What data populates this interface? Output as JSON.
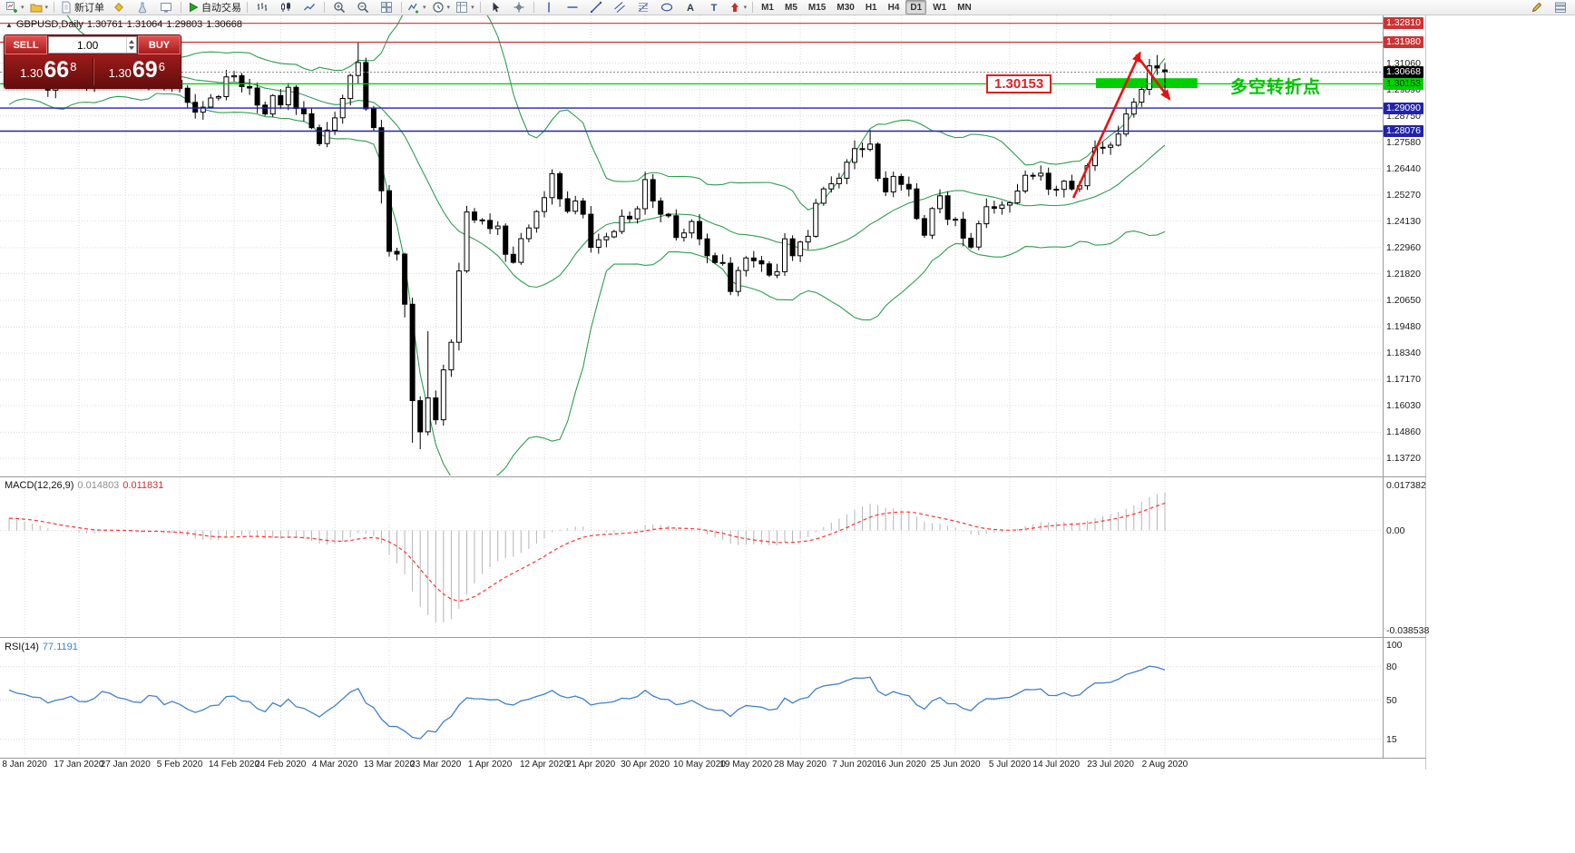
{
  "toolbar": {
    "items": [
      {
        "type": "icon",
        "name": "new-chart-icon",
        "glyph": "chart-plus",
        "dropdown": true
      },
      {
        "type": "icon",
        "name": "profiles-icon",
        "glyph": "folder",
        "dropdown": true
      },
      {
        "type": "sep"
      },
      {
        "type": "button",
        "name": "new-order-button",
        "glyph": "doc-new",
        "label": "新订单"
      },
      {
        "type": "icon",
        "name": "metaeditor-icon",
        "glyph": "diamond-yellow"
      },
      {
        "type": "icon",
        "name": "strategy-tester-icon",
        "glyph": "flask"
      },
      {
        "type": "icon",
        "name": "terminal-icon",
        "glyph": "terminal"
      },
      {
        "type": "sep"
      },
      {
        "type": "button",
        "name": "autotrading-button",
        "glyph": "play-green",
        "label": "自动交易"
      },
      {
        "type": "sep"
      },
      {
        "type": "icon",
        "name": "bar-chart-icon",
        "glyph": "bars"
      },
      {
        "type": "icon",
        "name": "candlestick-chart-icon",
        "glyph": "candles"
      },
      {
        "type": "icon",
        "name": "line-chart-icon",
        "glyph": "line"
      },
      {
        "type": "sep"
      },
      {
        "type": "icon",
        "name": "zoom-in-icon",
        "glyph": "zoom-in"
      },
      {
        "type": "icon",
        "name": "zoom-out-icon",
        "glyph": "zoom-out"
      },
      {
        "type": "icon",
        "name": "tile-windows-icon",
        "glyph": "tiles"
      },
      {
        "type": "sep"
      },
      {
        "type": "icon",
        "name": "indicators-icon",
        "glyph": "indicator-plus",
        "dropdown": true
      },
      {
        "type": "icon",
        "name": "periods-icon",
        "glyph": "clock",
        "dropdown": true
      },
      {
        "type": "icon",
        "name": "templates-icon",
        "glyph": "template",
        "dropdown": true
      },
      {
        "type": "sep"
      },
      {
        "type": "icon",
        "name": "cursor-icon",
        "glyph": "cursor"
      },
      {
        "type": "icon",
        "name": "crosshair-icon",
        "glyph": "crosshair"
      },
      {
        "type": "sep"
      },
      {
        "type": "icon",
        "name": "vertical-line-icon",
        "glyph": "vline"
      },
      {
        "type": "icon",
        "name": "horizontal-line-icon",
        "glyph": "hline"
      },
      {
        "type": "icon",
        "name": "trendline-icon",
        "glyph": "trend"
      },
      {
        "type": "icon",
        "name": "channel-icon",
        "glyph": "channel"
      },
      {
        "type": "icon",
        "name": "fibonacci-icon",
        "glyph": "fibo"
      },
      {
        "type": "icon",
        "name": "shapes-icon",
        "glyph": "ellipse"
      },
      {
        "type": "icon",
        "name": "text-icon",
        "glyph": "textA"
      },
      {
        "type": "icon",
        "name": "label-icon",
        "glyph": "textT"
      },
      {
        "type": "icon",
        "name": "arrows-icon",
        "glyph": "arrow-up",
        "dropdown": true
      },
      {
        "type": "sep"
      },
      {
        "type": "timeframes"
      },
      {
        "type": "spacer"
      },
      {
        "type": "icon",
        "name": "pencil-icon",
        "glyph": "pencil"
      },
      {
        "type": "icon",
        "name": "layout-icon",
        "glyph": "layout"
      }
    ],
    "timeframes": [
      "M1",
      "M5",
      "M15",
      "M30",
      "H1",
      "H4",
      "D1",
      "W1",
      "MN"
    ],
    "active_timeframe": "D1"
  },
  "chart_header": {
    "symbol_period": "GBPUSD,Daily",
    "open": "1.30761",
    "high": "1.31064",
    "low": "1.29803",
    "close": "1.30668"
  },
  "trade_panel": {
    "sell_label": "SELL",
    "buy_label": "BUY",
    "volume": "1.00",
    "bid_small": "1.30",
    "bid_big": "66",
    "bid_sup": "8",
    "ask_small": "1.30",
    "ask_big": "69",
    "ask_sup": "6"
  },
  "indicators": {
    "macd_label": "MACD(12,26,9)",
    "macd_value_main": "0.014803",
    "macd_value_signal": "0.011831",
    "macd_scale": [
      "0.017382",
      "0.00",
      "-0.038538"
    ],
    "rsi_label": "RSI(14)",
    "rsi_value": "77.1191",
    "rsi_scale": [
      "100",
      "80",
      "50",
      "15"
    ]
  },
  "annotations": {
    "price_callout": "1.30153",
    "turning_point_text": "多空转折点"
  },
  "price_scale": {
    "ticks": [
      "1.31060",
      "1.29890",
      "1.28750",
      "1.27580",
      "1.26440",
      "1.25270",
      "1.24130",
      "1.22960",
      "1.21820",
      "1.20650",
      "1.19480",
      "1.18340",
      "1.17170",
      "1.16030",
      "1.14860",
      "1.13720"
    ],
    "line_labels": [
      {
        "text": "1.32810",
        "price": 1.3281,
        "bg": "#cd3333",
        "fg": "#ffffff"
      },
      {
        "text": "1.31980",
        "price": 1.3198,
        "bg": "#cd3333",
        "fg": "#ffffff"
      },
      {
        "text": "1.30668",
        "price": 1.30668,
        "bg": "#000000",
        "fg": "#ffffff"
      },
      {
        "text": "1.30153",
        "price": 1.30153,
        "bg": "#00d000",
        "fg": "#003300"
      },
      {
        "text": "1.29090",
        "price": 1.2909,
        "bg": "#2323a8",
        "fg": "#ffffff"
      },
      {
        "text": "1.28076",
        "price": 1.28076,
        "bg": "#2323a8",
        "fg": "#ffffff"
      }
    ]
  },
  "dates": [
    {
      "t": "8 Jan 2020",
      "i": 2
    },
    {
      "t": "17 Jan 2020",
      "i": 9
    },
    {
      "t": "27 Jan 2020",
      "i": 15
    },
    {
      "t": "5 Feb 2020",
      "i": 22
    },
    {
      "t": "14 Feb 2020",
      "i": 29
    },
    {
      "t": "24 Feb 2020",
      "i": 35
    },
    {
      "t": "4 Mar 2020",
      "i": 42
    },
    {
      "t": "13 Mar 2020",
      "i": 49
    },
    {
      "t": "23 Mar 2020",
      "i": 55
    },
    {
      "t": "1 Apr 2020",
      "i": 62
    },
    {
      "t": "12 Apr 2020",
      "i": 69
    },
    {
      "t": "21 Apr 2020",
      "i": 75
    },
    {
      "t": "30 Apr 2020",
      "i": 82
    },
    {
      "t": "10 May 2020",
      "i": 89
    },
    {
      "t": "19 May 2020",
      "i": 95
    },
    {
      "t": "28 May 2020",
      "i": 102
    },
    {
      "t": "7 Jun 2020",
      "i": 109
    },
    {
      "t": "16 Jun 2020",
      "i": 115
    },
    {
      "t": "25 Jun 2020",
      "i": 122
    },
    {
      "t": "5 Jul 2020",
      "i": 129
    },
    {
      "t": "14 Jul 2020",
      "i": 135
    },
    {
      "t": "23 Jul 2020",
      "i": 142
    },
    {
      "t": "2 Aug 2020",
      "i": 149
    }
  ],
  "chart_data": {
    "type": "candlestick",
    "symbol": "GBPUSD",
    "timeframe": "Daily",
    "first_open": 1.3085,
    "pre_closes": [
      1.2912,
      1.2985,
      1.3055,
      1.3105,
      1.3166,
      1.3102,
      1.323,
      1.33,
      1.338,
      1.333,
      1.325,
      1.3112,
      1.3,
      1.2985,
      1.3025,
      1.308,
      1.311,
      1.3145,
      1.32,
      1.3257
    ],
    "closes": [
      1.3166,
      1.3122,
      1.3105,
      1.3069,
      1.3062,
      1.2988,
      1.3023,
      1.304,
      1.3076,
      1.3012,
      1.3008,
      1.3048,
      1.3141,
      1.3121,
      1.3073,
      1.3057,
      1.3025,
      1.3018,
      1.3095,
      1.3085,
      1.2995,
      1.3031,
      1.2996,
      1.2934,
      1.2891,
      1.2913,
      1.2953,
      1.2959,
      1.3046,
      1.3051,
      1.3003,
      1.2997,
      1.2922,
      1.2883,
      1.2964,
      1.2923,
      1.3,
      1.2907,
      1.2884,
      1.2823,
      1.2753,
      1.2812,
      1.2866,
      1.2951,
      1.3052,
      1.3109,
      1.2906,
      1.2823,
      1.2546,
      1.228,
      1.2268,
      1.2048,
      1.1625,
      1.1488,
      1.1637,
      1.1541,
      1.176,
      1.1881,
      1.2194,
      1.2453,
      1.2418,
      1.2416,
      1.238,
      1.2391,
      1.2267,
      1.2232,
      1.2336,
      1.2383,
      1.2455,
      1.2516,
      1.2621,
      1.2511,
      1.2456,
      1.2501,
      1.2443,
      1.2298,
      1.2331,
      1.2344,
      1.2367,
      1.2434,
      1.2423,
      1.2467,
      1.2595,
      1.2501,
      1.2443,
      1.2436,
      1.2341,
      1.2361,
      1.2411,
      1.2335,
      1.2261,
      1.2231,
      1.2228,
      1.2104,
      1.2196,
      1.2251,
      1.2239,
      1.2225,
      1.2176,
      1.2191,
      1.2335,
      1.2261,
      1.2321,
      1.2346,
      1.2491,
      1.2554,
      1.2577,
      1.2601,
      1.2671,
      1.2731,
      1.2728,
      1.2751,
      1.2601,
      1.2541,
      1.2609,
      1.2574,
      1.2554,
      1.2424,
      1.2351,
      1.2468,
      1.2524,
      1.2421,
      1.2421,
      1.2338,
      1.2299,
      1.2401,
      1.2476,
      1.2469,
      1.2483,
      1.2493,
      1.2545,
      1.2614,
      1.2611,
      1.2623,
      1.2553,
      1.2552,
      1.2588,
      1.2554,
      1.2568,
      1.2656,
      1.2735,
      1.2737,
      1.2746,
      1.2795,
      1.2883,
      1.2935,
      1.2991,
      1.3094,
      1.3085,
      1.30668
    ],
    "overrides": {
      "45": {
        "h": 1.32
      },
      "48": {
        "l": 1.249
      },
      "51": {
        "l": 1.199
      },
      "52": {
        "l": 1.144
      },
      "53": {
        "l": 1.1412
      },
      "54": {
        "h": 1.193
      },
      "111": {
        "h": 1.2813
      },
      "148": {
        "h": 1.3142
      },
      "149": {
        "o": 1.30761,
        "h": 1.31064,
        "l": 1.29803,
        "c": 1.30668
      }
    },
    "bollinger": {
      "period": 20,
      "deviation": 2
    },
    "bid": 1.30668,
    "hlines": [
      {
        "price": 1.3281,
        "color": "#cd3333",
        "w": 1.2
      },
      {
        "price": 1.3198,
        "color": "#cd3333",
        "w": 1.2
      },
      {
        "price": 1.30153,
        "color": "#00ca00",
        "w": 1.3
      },
      {
        "price": 1.2909,
        "color": "#2424aa",
        "w": 1.4
      },
      {
        "price": 1.28076,
        "color": "#2424aa",
        "w": 1.4
      }
    ],
    "green_rect": {
      "i1": 140.1,
      "i2": 153.2,
      "p1": 1.304,
      "p2": 1.2997
    },
    "arrows": [
      {
        "i1": 137.2,
        "p1": 1.2515,
        "i2": 145.8,
        "p2": 1.3152
      },
      {
        "i1": 145.3,
        "p1": 1.3144,
        "i2": 149.6,
        "p2": 1.2948
      }
    ]
  },
  "colors": {
    "bollinger": "#2f9e4f",
    "green_rect": "#00d000",
    "arrow_red": "#e81111",
    "macd_hist": "#b4b4b4",
    "macd_signal": "#ff3232",
    "rsi_line": "#4080d0",
    "bull": "#ffffff",
    "bear": "#000000",
    "wick": "#000000"
  }
}
